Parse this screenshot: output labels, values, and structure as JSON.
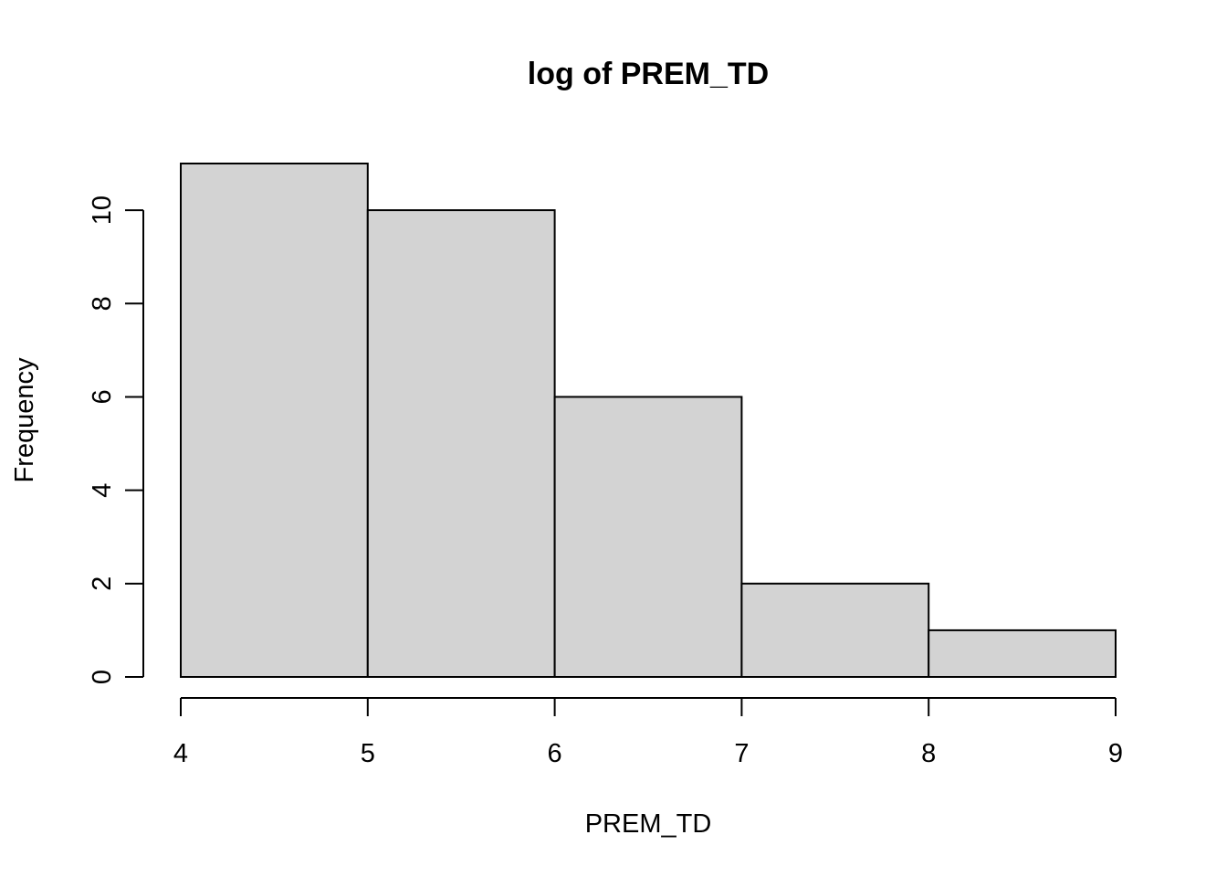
{
  "chart_data": {
    "type": "bar",
    "title": "log of PREM_TD",
    "xlabel": "PREM_TD",
    "ylabel": "Frequency",
    "bins": [
      {
        "start": 4,
        "end": 5,
        "count": 11
      },
      {
        "start": 5,
        "end": 6,
        "count": 10
      },
      {
        "start": 6,
        "end": 7,
        "count": 6
      },
      {
        "start": 7,
        "end": 8,
        "count": 2
      },
      {
        "start": 8,
        "end": 9,
        "count": 1
      }
    ],
    "xlim": [
      4,
      9
    ],
    "ylim": [
      0,
      11
    ],
    "xticks": [
      4,
      5,
      6,
      7,
      8,
      9
    ],
    "yticks": [
      0,
      2,
      4,
      6,
      8,
      10
    ],
    "bar_color": "#d3d3d3",
    "grid": false,
    "legend": "none"
  }
}
